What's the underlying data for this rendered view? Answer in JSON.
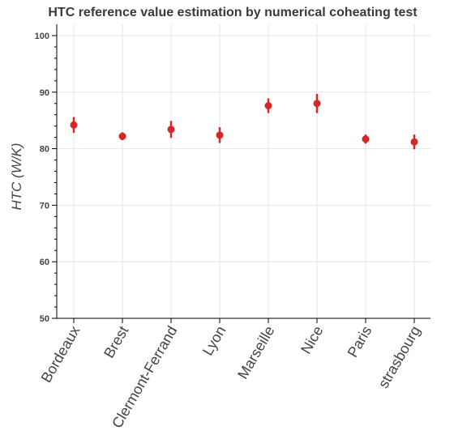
{
  "chart_data": {
    "type": "scatter",
    "title": "HTC reference value estimation by numerical coheating test",
    "xlabel": "",
    "ylabel": "HTC (W/K)",
    "ylim": [
      50,
      102
    ],
    "yticks": [
      50,
      60,
      70,
      80,
      90,
      100
    ],
    "grid": true,
    "categories": [
      "Bordeaux",
      "Brest",
      "Clermont-Ferrand",
      "Lyon",
      "Marseille",
      "Nice",
      "Paris",
      "strasbourg"
    ],
    "series": [
      {
        "values": [
          84.2,
          82.2,
          83.4,
          82.4,
          87.6,
          88.0,
          81.7,
          81.2
        ],
        "error_low": [
          82.8,
          81.5,
          81.9,
          81.0,
          86.3,
          86.3,
          80.9,
          79.9
        ],
        "error_high": [
          85.6,
          82.9,
          84.9,
          83.8,
          88.9,
          89.7,
          82.5,
          82.5
        ],
        "color": "#d62728"
      }
    ]
  }
}
